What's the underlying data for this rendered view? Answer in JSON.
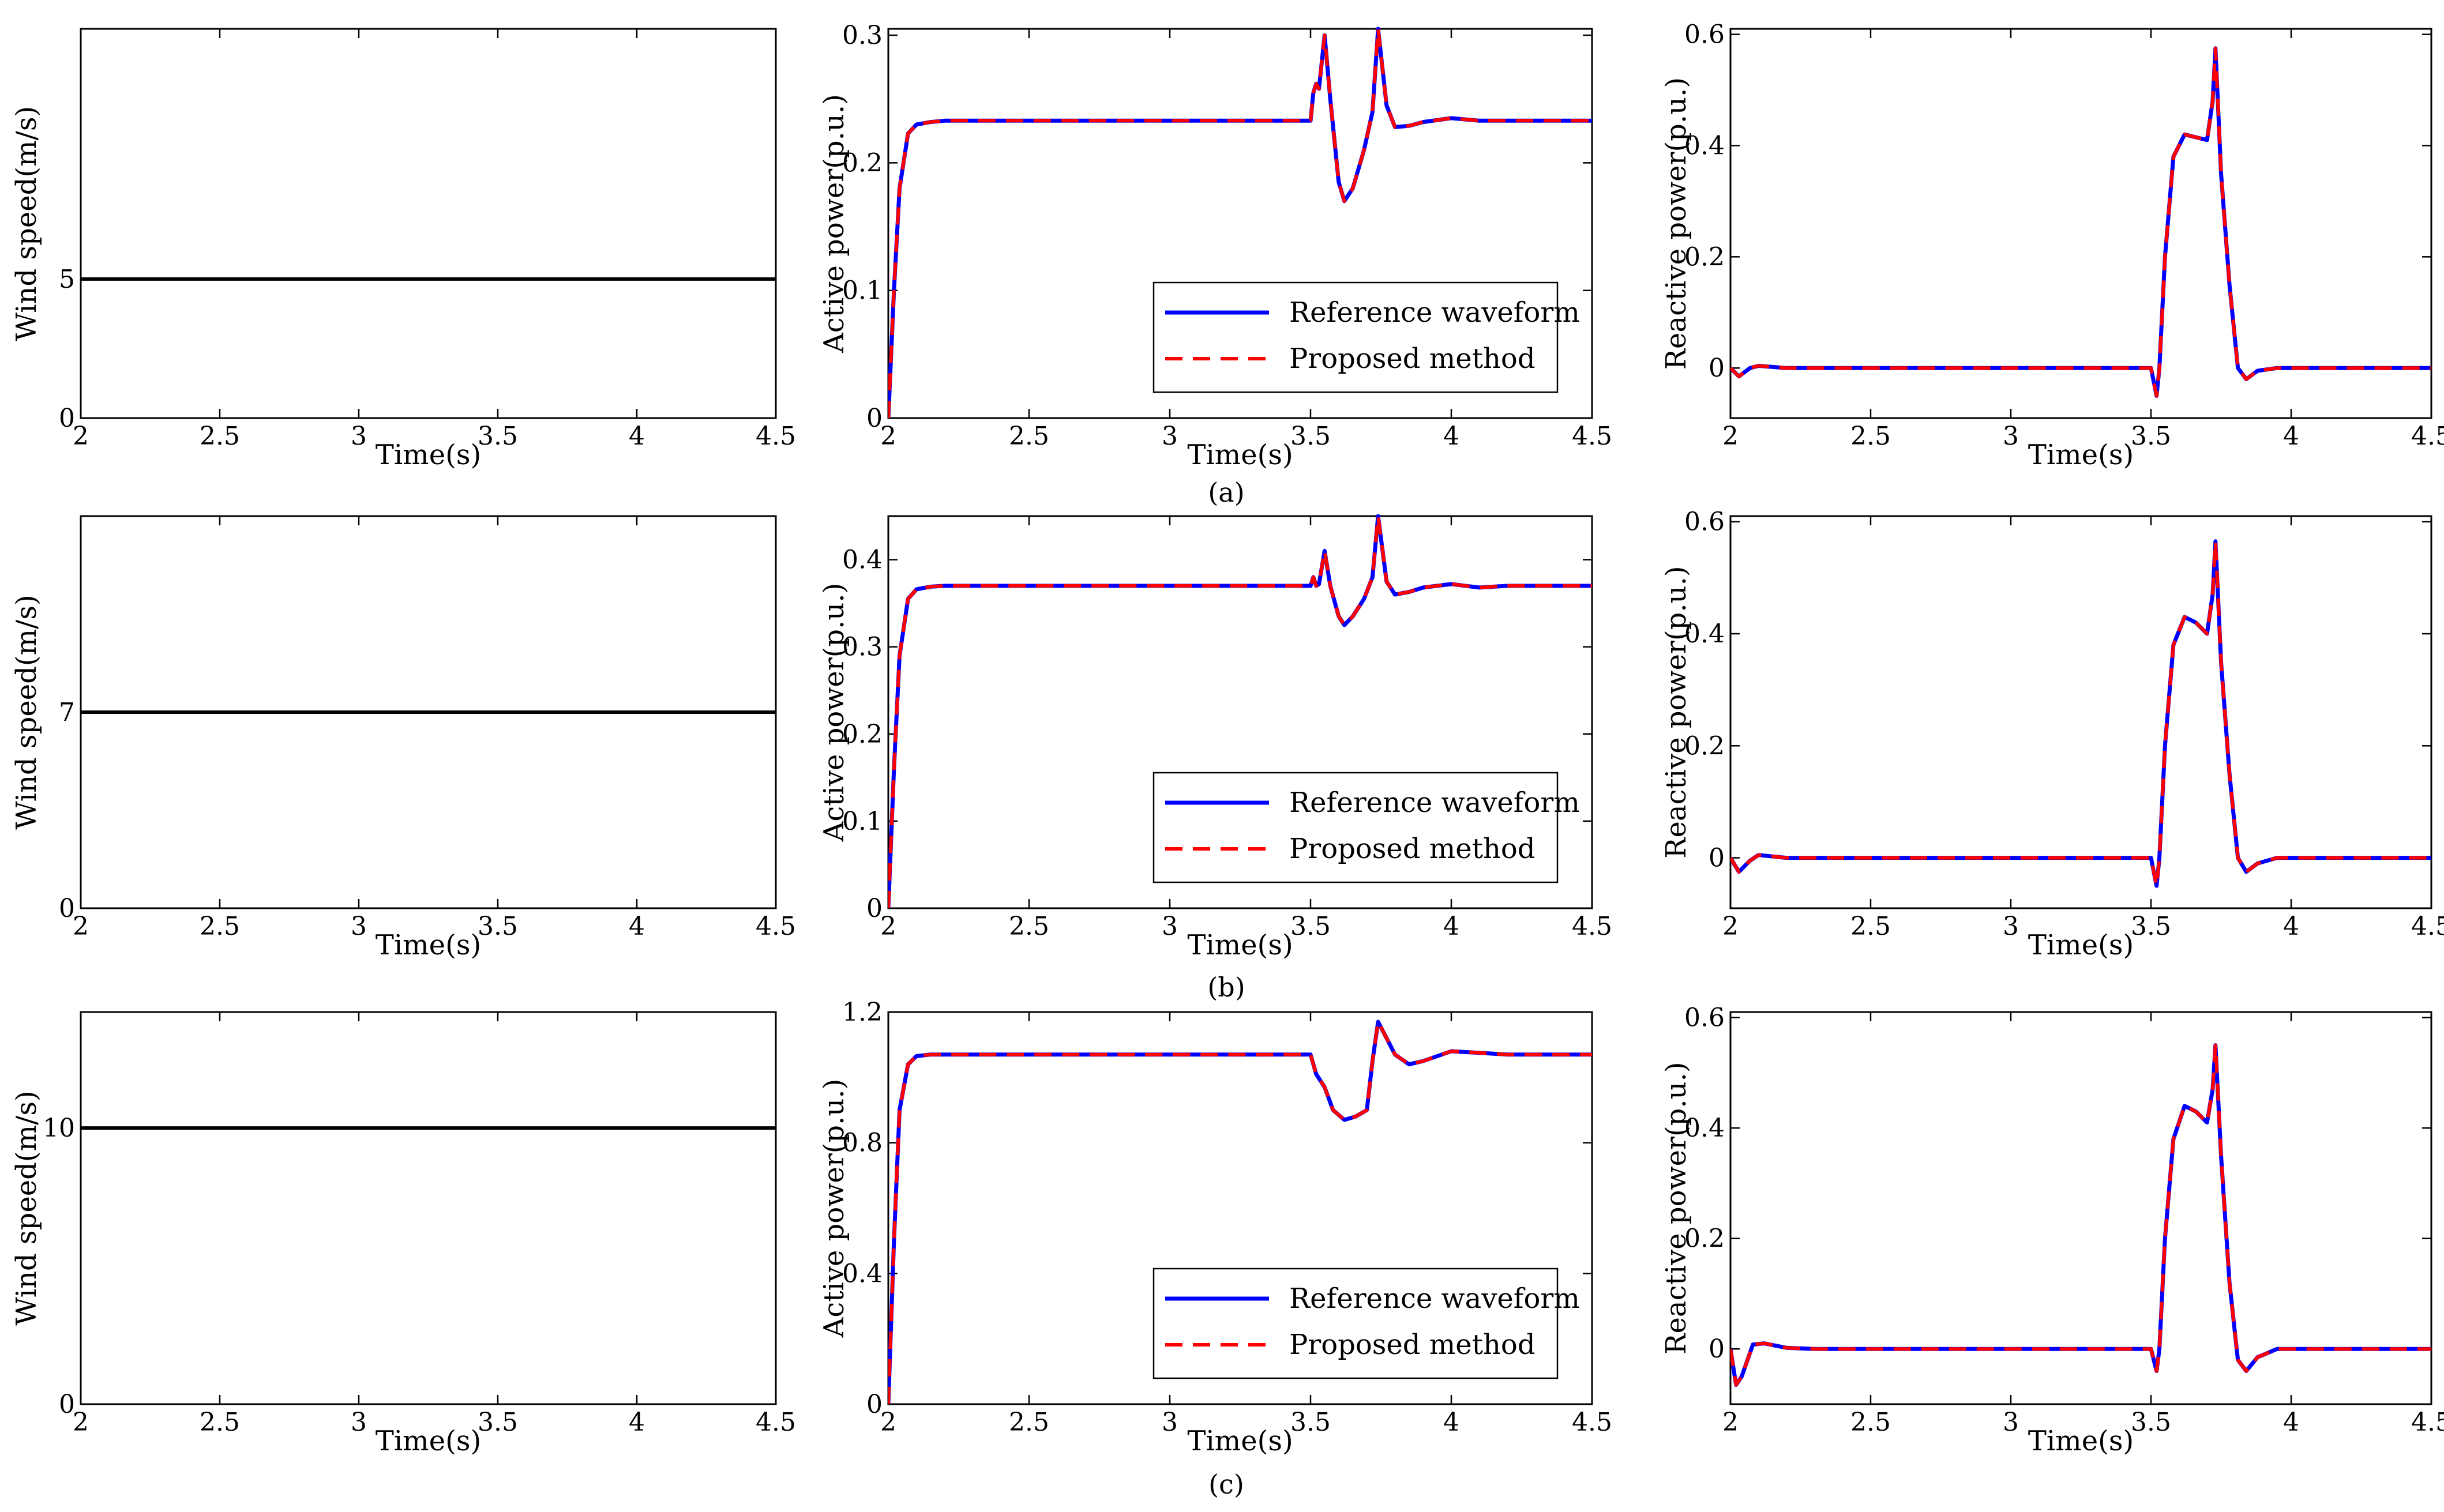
{
  "rows": [
    {
      "caption": "(a)"
    },
    {
      "caption": "(b)"
    },
    {
      "caption": "(c)"
    }
  ],
  "legend": {
    "reference": "Reference waveform",
    "proposed": "Proposed method"
  },
  "colors": {
    "reference": "#0000ff",
    "proposed": "#ff0000",
    "wind": "#000000",
    "axes": "#000000"
  },
  "chart_data": [
    {
      "id": "a-wind",
      "type": "line",
      "xlabel": "Time(s)",
      "ylabel": "Wind speed(m/s)",
      "xlim": [
        2,
        4.5
      ],
      "ylim": [
        0,
        14
      ],
      "xticks": [
        2,
        2.5,
        3,
        3.5,
        4,
        4.5
      ],
      "yticks": [
        0,
        5
      ],
      "series": [
        {
          "kind": "wind",
          "x": [
            2,
            4.5
          ],
          "y": [
            5,
            5
          ]
        }
      ]
    },
    {
      "id": "a-active",
      "type": "line",
      "xlabel": "Time(s)",
      "ylabel": "Active power(p.u.)",
      "xlim": [
        2,
        4.5
      ],
      "ylim": [
        0,
        0.305
      ],
      "xticks": [
        2,
        2.5,
        3,
        3.5,
        4,
        4.5
      ],
      "yticks": [
        0,
        0.1,
        0.2,
        0.3
      ],
      "legend": true,
      "series": [
        {
          "kind": "reference",
          "name": "Reference waveform",
          "x": [
            2,
            2.02,
            2.04,
            2.07,
            2.1,
            2.15,
            2.2,
            3.5,
            3.51,
            3.52,
            3.53,
            3.55,
            3.57,
            3.6,
            3.62,
            3.65,
            3.69,
            3.72,
            3.74,
            3.77,
            3.8,
            3.85,
            3.9,
            4.0,
            4.1,
            4.2,
            4.5
          ],
          "y": [
            0,
            0.1,
            0.18,
            0.223,
            0.23,
            0.232,
            0.233,
            0.233,
            0.255,
            0.262,
            0.258,
            0.3,
            0.25,
            0.185,
            0.17,
            0.18,
            0.21,
            0.24,
            0.305,
            0.245,
            0.228,
            0.229,
            0.232,
            0.235,
            0.233,
            0.233,
            0.233
          ]
        },
        {
          "kind": "proposed",
          "name": "Proposed method",
          "x": [
            2,
            2.02,
            2.04,
            2.07,
            2.1,
            2.15,
            2.2,
            3.5,
            3.51,
            3.52,
            3.53,
            3.55,
            3.57,
            3.6,
            3.62,
            3.65,
            3.69,
            3.72,
            3.74,
            3.77,
            3.8,
            3.85,
            3.9,
            4.0,
            4.1,
            4.2,
            4.5
          ],
          "y": [
            0,
            0.1,
            0.18,
            0.223,
            0.23,
            0.232,
            0.233,
            0.233,
            0.255,
            0.262,
            0.258,
            0.3,
            0.25,
            0.185,
            0.17,
            0.18,
            0.21,
            0.24,
            0.305,
            0.245,
            0.228,
            0.229,
            0.232,
            0.235,
            0.233,
            0.233,
            0.233
          ]
        }
      ]
    },
    {
      "id": "a-reactive",
      "type": "line",
      "xlabel": "Time(s)",
      "ylabel": "Reactive power(p.u.)",
      "xlim": [
        2,
        4.5
      ],
      "ylim": [
        -0.09,
        0.61
      ],
      "xticks": [
        2,
        2.5,
        3,
        3.5,
        4,
        4.5
      ],
      "yticks": [
        0,
        0.2,
        0.4,
        0.6
      ],
      "series": [
        {
          "kind": "reference",
          "name": "Reference waveform",
          "x": [
            2,
            2.03,
            2.07,
            2.1,
            2.2,
            3.5,
            3.52,
            3.53,
            3.55,
            3.58,
            3.62,
            3.66,
            3.7,
            3.72,
            3.73,
            3.75,
            3.78,
            3.81,
            3.84,
            3.88,
            3.95,
            4.5
          ],
          "y": [
            0,
            -0.015,
            0,
            0.004,
            0,
            0,
            -0.05,
            0.0,
            0.2,
            0.38,
            0.42,
            0.415,
            0.41,
            0.48,
            0.575,
            0.35,
            0.15,
            0.0,
            -0.02,
            -0.005,
            0,
            0
          ]
        },
        {
          "kind": "proposed",
          "name": "Proposed method",
          "x": [
            2,
            2.03,
            2.07,
            2.1,
            2.2,
            3.5,
            3.52,
            3.53,
            3.55,
            3.58,
            3.62,
            3.66,
            3.7,
            3.72,
            3.73,
            3.75,
            3.78,
            3.81,
            3.84,
            3.88,
            3.95,
            4.5
          ],
          "y": [
            0,
            -0.015,
            0,
            0.004,
            0,
            0,
            -0.05,
            0.0,
            0.2,
            0.38,
            0.42,
            0.415,
            0.41,
            0.48,
            0.575,
            0.35,
            0.15,
            0.0,
            -0.02,
            -0.005,
            0,
            0
          ]
        }
      ]
    },
    {
      "id": "b-wind",
      "type": "line",
      "xlabel": "Time(s)",
      "ylabel": "Wind speed(m/s)",
      "xlim": [
        2,
        4.5
      ],
      "ylim": [
        0,
        14
      ],
      "xticks": [
        2,
        2.5,
        3,
        3.5,
        4,
        4.5
      ],
      "yticks": [
        0,
        7
      ],
      "series": [
        {
          "kind": "wind",
          "x": [
            2,
            4.5
          ],
          "y": [
            7,
            7
          ]
        }
      ]
    },
    {
      "id": "b-active",
      "type": "line",
      "xlabel": "Time(s)",
      "ylabel": "Active power(p.u.)",
      "xlim": [
        2,
        4.5
      ],
      "ylim": [
        0,
        0.45
      ],
      "xticks": [
        2,
        2.5,
        3,
        3.5,
        4,
        4.5
      ],
      "yticks": [
        0,
        0.1,
        0.2,
        0.3,
        0.4
      ],
      "legend": true,
      "series": [
        {
          "kind": "reference",
          "name": "Reference waveform",
          "x": [
            2,
            2.02,
            2.04,
            2.07,
            2.1,
            2.15,
            2.2,
            3.5,
            3.51,
            3.52,
            3.53,
            3.55,
            3.57,
            3.6,
            3.62,
            3.65,
            3.69,
            3.72,
            3.74,
            3.77,
            3.8,
            3.85,
            3.9,
            4.0,
            4.1,
            4.2,
            4.5
          ],
          "y": [
            0,
            0.16,
            0.29,
            0.355,
            0.366,
            0.369,
            0.37,
            0.37,
            0.38,
            0.37,
            0.372,
            0.41,
            0.37,
            0.335,
            0.325,
            0.335,
            0.355,
            0.38,
            0.45,
            0.375,
            0.36,
            0.363,
            0.368,
            0.372,
            0.368,
            0.37,
            0.37
          ]
        },
        {
          "kind": "proposed",
          "name": "Proposed method",
          "x": [
            2,
            2.02,
            2.04,
            2.07,
            2.1,
            2.15,
            2.2,
            3.5,
            3.51,
            3.52,
            3.53,
            3.55,
            3.57,
            3.6,
            3.62,
            3.65,
            3.69,
            3.72,
            3.74,
            3.77,
            3.8,
            3.85,
            3.9,
            4.0,
            4.1,
            4.2,
            4.5
          ],
          "y": [
            0,
            0.16,
            0.29,
            0.355,
            0.366,
            0.369,
            0.37,
            0.37,
            0.38,
            0.37,
            0.372,
            0.41,
            0.37,
            0.335,
            0.325,
            0.335,
            0.355,
            0.38,
            0.45,
            0.375,
            0.36,
            0.363,
            0.368,
            0.372,
            0.368,
            0.37,
            0.37
          ]
        }
      ]
    },
    {
      "id": "b-reactive",
      "type": "line",
      "xlabel": "Time(s)",
      "ylabel": "Reactive power(p.u.)",
      "xlim": [
        2,
        4.5
      ],
      "ylim": [
        -0.09,
        0.61
      ],
      "xticks": [
        2,
        2.5,
        3,
        3.5,
        4,
        4.5
      ],
      "yticks": [
        0,
        0.2,
        0.4,
        0.6
      ],
      "series": [
        {
          "kind": "reference",
          "name": "Reference waveform",
          "x": [
            2,
            2.03,
            2.07,
            2.1,
            2.2,
            3.5,
            3.52,
            3.53,
            3.55,
            3.58,
            3.62,
            3.66,
            3.7,
            3.72,
            3.73,
            3.75,
            3.78,
            3.81,
            3.84,
            3.88,
            3.95,
            4.5
          ],
          "y": [
            0,
            -0.025,
            -0.005,
            0.005,
            0,
            0,
            -0.05,
            0.0,
            0.2,
            0.38,
            0.43,
            0.42,
            0.4,
            0.47,
            0.565,
            0.35,
            0.15,
            0.0,
            -0.025,
            -0.01,
            0,
            0
          ]
        },
        {
          "kind": "proposed",
          "name": "Proposed method",
          "x": [
            2,
            2.03,
            2.07,
            2.1,
            2.2,
            3.5,
            3.52,
            3.53,
            3.55,
            3.58,
            3.62,
            3.66,
            3.7,
            3.72,
            3.73,
            3.75,
            3.78,
            3.81,
            3.84,
            3.88,
            3.95,
            4.5
          ],
          "y": [
            0,
            -0.025,
            -0.005,
            0.005,
            0,
            0,
            -0.05,
            0.0,
            0.2,
            0.38,
            0.43,
            0.42,
            0.4,
            0.47,
            0.565,
            0.35,
            0.15,
            0.0,
            -0.025,
            -0.01,
            0,
            0
          ]
        }
      ]
    },
    {
      "id": "c-wind",
      "type": "line",
      "xlabel": "Time(s)",
      "ylabel": "Wind speed(m/s)",
      "xlim": [
        2,
        4.5
      ],
      "ylim": [
        0,
        14.2
      ],
      "xticks": [
        2,
        2.5,
        3,
        3.5,
        4,
        4.5
      ],
      "yticks": [
        0,
        10
      ],
      "series": [
        {
          "kind": "wind",
          "x": [
            2,
            4.5
          ],
          "y": [
            10,
            10
          ]
        }
      ]
    },
    {
      "id": "c-active",
      "type": "line",
      "xlabel": "Time(s)",
      "ylabel": "Active power(p.u.)",
      "xlim": [
        2,
        4.5
      ],
      "ylim": [
        0,
        1.2
      ],
      "xticks": [
        2,
        2.5,
        3,
        3.5,
        4,
        4.5
      ],
      "yticks": [
        0,
        0.4,
        0.8,
        1.2
      ],
      "legend": true,
      "series": [
        {
          "kind": "reference",
          "name": "Reference waveform",
          "x": [
            2,
            2.02,
            2.04,
            2.07,
            2.1,
            2.15,
            2.2,
            3.5,
            3.52,
            3.55,
            3.58,
            3.62,
            3.66,
            3.7,
            3.72,
            3.74,
            3.77,
            3.8,
            3.85,
            3.9,
            4.0,
            4.1,
            4.2,
            4.5
          ],
          "y": [
            0,
            0.5,
            0.9,
            1.04,
            1.065,
            1.07,
            1.07,
            1.07,
            1.01,
            0.97,
            0.9,
            0.87,
            0.88,
            0.9,
            1.05,
            1.17,
            1.12,
            1.07,
            1.04,
            1.05,
            1.08,
            1.075,
            1.07,
            1.07
          ]
        },
        {
          "kind": "proposed",
          "name": "Proposed method",
          "x": [
            2,
            2.02,
            2.04,
            2.07,
            2.1,
            2.15,
            2.2,
            3.5,
            3.52,
            3.55,
            3.58,
            3.62,
            3.66,
            3.7,
            3.72,
            3.74,
            3.77,
            3.8,
            3.85,
            3.9,
            4.0,
            4.1,
            4.2,
            4.5
          ],
          "y": [
            0,
            0.5,
            0.9,
            1.04,
            1.065,
            1.07,
            1.07,
            1.07,
            1.01,
            0.97,
            0.9,
            0.87,
            0.88,
            0.9,
            1.05,
            1.17,
            1.12,
            1.07,
            1.04,
            1.05,
            1.08,
            1.075,
            1.07,
            1.07
          ]
        }
      ]
    },
    {
      "id": "c-reactive",
      "type": "line",
      "xlabel": "Time(s)",
      "ylabel": "Reactive power(p.u.)",
      "xlim": [
        2,
        4.5
      ],
      "ylim": [
        -0.1,
        0.61
      ],
      "xticks": [
        2,
        2.5,
        3,
        3.5,
        4,
        4.5
      ],
      "yticks": [
        0,
        0.2,
        0.4,
        0.6
      ],
      "series": [
        {
          "kind": "reference",
          "name": "Reference waveform",
          "x": [
            2,
            2.02,
            2.04,
            2.08,
            2.12,
            2.2,
            2.3,
            3.5,
            3.52,
            3.53,
            3.55,
            3.58,
            3.62,
            3.66,
            3.7,
            3.72,
            3.73,
            3.75,
            3.78,
            3.81,
            3.84,
            3.88,
            3.95,
            4.5
          ],
          "y": [
            0,
            -0.065,
            -0.05,
            0.008,
            0.01,
            0.002,
            0,
            0,
            -0.04,
            0.0,
            0.2,
            0.38,
            0.44,
            0.43,
            0.41,
            0.47,
            0.55,
            0.35,
            0.12,
            -0.02,
            -0.04,
            -0.015,
            0,
            0
          ]
        },
        {
          "kind": "proposed",
          "name": "Proposed method",
          "x": [
            2,
            2.02,
            2.04,
            2.08,
            2.12,
            2.2,
            2.3,
            3.5,
            3.52,
            3.53,
            3.55,
            3.58,
            3.62,
            3.66,
            3.7,
            3.72,
            3.73,
            3.75,
            3.78,
            3.81,
            3.84,
            3.88,
            3.95,
            4.5
          ],
          "y": [
            0,
            -0.065,
            -0.05,
            0.008,
            0.01,
            0.002,
            0,
            0,
            -0.04,
            0.0,
            0.2,
            0.38,
            0.44,
            0.43,
            0.41,
            0.47,
            0.55,
            0.35,
            0.12,
            -0.02,
            -0.04,
            -0.015,
            0,
            0
          ]
        }
      ]
    }
  ]
}
